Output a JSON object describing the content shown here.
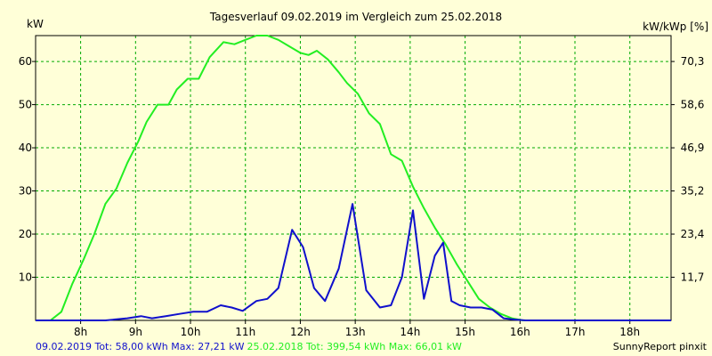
{
  "chart_data": {
    "type": "line",
    "title": "Tagesverlauf 09.02.2019 im Vergleich zum 25.02.2018",
    "ylabel_left": "kW",
    "ylabel_right": "kW/kWp [%]",
    "xlabel": "",
    "x_ticks": [
      "8h",
      "9h",
      "10h",
      "11h",
      "12h",
      "13h",
      "14h",
      "15h",
      "16h",
      "17h",
      "18h"
    ],
    "x_tick_values": [
      8,
      9,
      10,
      11,
      12,
      13,
      14,
      15,
      16,
      17,
      18
    ],
    "xlim": [
      7.18,
      18.75
    ],
    "ylim": [
      0,
      66
    ],
    "y_ticks_left": [
      10,
      20,
      30,
      40,
      50,
      60
    ],
    "y_ticks_right": [
      {
        "value": 10,
        "label": "11,7"
      },
      {
        "value": 20,
        "label": "23,4"
      },
      {
        "value": 30,
        "label": "35,2"
      },
      {
        "value": 40,
        "label": "46,9"
      },
      {
        "value": 50,
        "label": "58,6"
      },
      {
        "value": 60,
        "label": "70,3"
      }
    ],
    "grid": true,
    "legend_position": "bottom-left",
    "series": [
      {
        "name": "25.02.2018",
        "color": "#22ee22",
        "x": [
          7.18,
          7.45,
          7.65,
          7.85,
          8.05,
          8.25,
          8.45,
          8.65,
          8.85,
          9.05,
          9.2,
          9.4,
          9.6,
          9.75,
          9.95,
          10.15,
          10.35,
          10.6,
          10.8,
          11.0,
          11.2,
          11.4,
          11.6,
          11.8,
          12.0,
          12.15,
          12.3,
          12.5,
          12.7,
          12.85,
          13.05,
          13.25,
          13.45,
          13.65,
          13.85,
          14.05,
          14.25,
          14.45,
          14.65,
          14.85,
          15.05,
          15.25,
          15.45,
          15.65,
          15.85,
          16.05,
          16.25,
          16.45,
          16.65,
          16.85,
          17.05,
          17.25,
          17.45,
          17.7,
          18.0,
          18.3,
          18.75
        ],
        "values": [
          0,
          0,
          2,
          8.5,
          14,
          20,
          27,
          30.5,
          36.5,
          41.5,
          46,
          50,
          50,
          53.5,
          56,
          56,
          61,
          64.5,
          64,
          65,
          66,
          66,
          65,
          63.5,
          62,
          61.5,
          62.5,
          60.5,
          57.5,
          55,
          52.5,
          48,
          45.5,
          38.5,
          37,
          31,
          26,
          21.5,
          17.5,
          13,
          9,
          5,
          3,
          1.5,
          0.5,
          0,
          0,
          0,
          0,
          0,
          0,
          0,
          0,
          0,
          0,
          0,
          0
        ]
      },
      {
        "name": "09.02.2019",
        "color": "#1010cc",
        "x": [
          7.18,
          7.8,
          8.45,
          8.85,
          9.1,
          9.3,
          9.55,
          9.8,
          10.05,
          10.3,
          10.55,
          10.75,
          10.95,
          11.2,
          11.4,
          11.6,
          11.85,
          12.05,
          12.25,
          12.45,
          12.7,
          12.95,
          13.2,
          13.45,
          13.65,
          13.85,
          14.05,
          14.25,
          14.45,
          14.6,
          14.75,
          14.9,
          15.1,
          15.3,
          15.5,
          15.7,
          15.9,
          16.1,
          16.35,
          16.55,
          16.8,
          17.05,
          17.25,
          17.5,
          17.75,
          18.0,
          18.3,
          18.75
        ],
        "values": [
          0,
          0,
          0,
          0.5,
          1,
          0.5,
          1,
          1.5,
          2,
          2,
          3.5,
          3,
          2.2,
          4.5,
          5,
          7.5,
          21,
          17,
          7.5,
          4.5,
          12,
          27,
          7,
          3,
          3.5,
          10,
          25.5,
          5,
          15,
          18,
          4.5,
          3.5,
          3,
          3,
          2.5,
          0.5,
          0.2,
          0,
          0,
          0,
          0,
          0,
          0,
          0,
          0,
          0,
          0,
          0
        ]
      }
    ],
    "footer_legend": [
      {
        "label": "09.02.2019 Tot: 58,00 kWh Max: 27,21 kW",
        "color": "#1010cc"
      },
      {
        "label": "25.02.2018 Tot: 399,54 kWh Max: 66,01 kW",
        "color": "#22ee22"
      }
    ],
    "footer_right": "SunnyReport pinxit"
  }
}
